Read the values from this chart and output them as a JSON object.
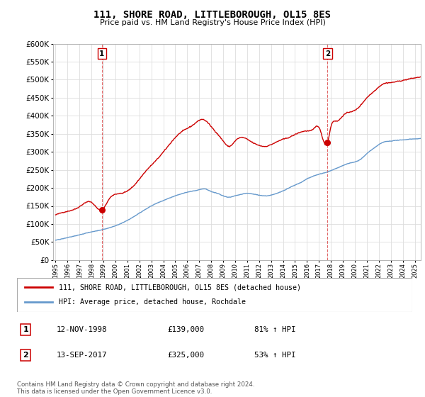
{
  "title": "111, SHORE ROAD, LITTLEBOROUGH, OL15 8ES",
  "subtitle": "Price paid vs. HM Land Registry's House Price Index (HPI)",
  "sale1": {
    "date": "12-NOV-1998",
    "price": 139000,
    "label": "1",
    "pct": "81% ↑ HPI",
    "year": 1998.87
  },
  "sale2": {
    "date": "13-SEP-2017",
    "price": 325000,
    "label": "2",
    "pct": "53% ↑ HPI",
    "year": 2017.71
  },
  "legend_line1": "111, SHORE ROAD, LITTLEBOROUGH, OL15 8ES (detached house)",
  "legend_line2": "HPI: Average price, detached house, Rochdale",
  "footer": "Contains HM Land Registry data © Crown copyright and database right 2024.\nThis data is licensed under the Open Government Licence v3.0.",
  "red_color": "#cc0000",
  "blue_color": "#6699cc",
  "ylim": [
    0,
    600000
  ],
  "yticks": [
    0,
    50000,
    100000,
    150000,
    200000,
    250000,
    300000,
    350000,
    400000,
    450000,
    500000,
    550000,
    600000
  ],
  "xlim": [
    1994.8,
    2025.5
  ],
  "background_color": "#ffffff",
  "grid_color": "#dddddd"
}
